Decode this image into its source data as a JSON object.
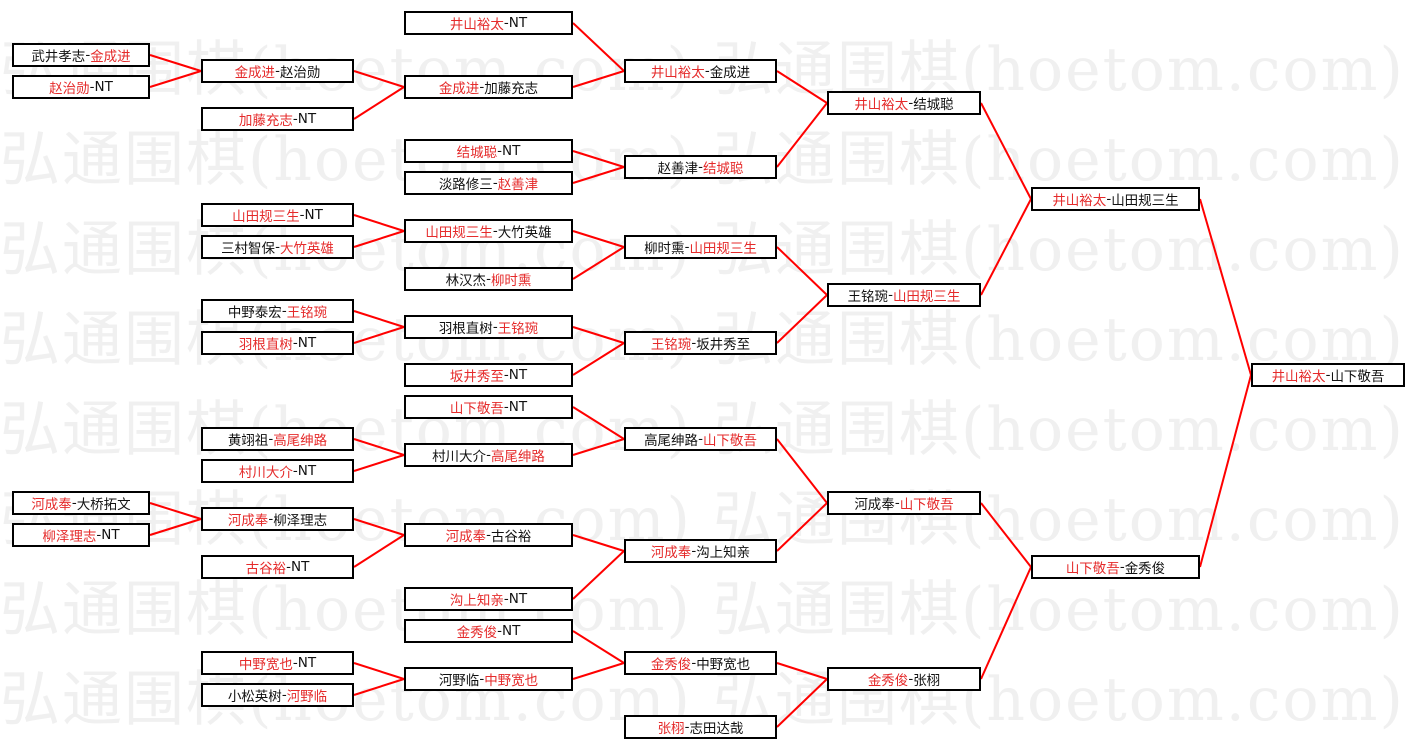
{
  "watermark": "弘通围棋(hoetom.com) 弘通围棋(hoetom.com) 弘通围棋(hoetom.com)",
  "colors": {
    "winner_text": "#e52b2b",
    "connector": "#ff0000",
    "border": "#000000"
  },
  "separator": "-",
  "rounds": [
    [
      {
        "a": "武井孝志",
        "b": "金成进",
        "winner": "b"
      },
      {
        "a": "赵治勋",
        "b": "NT",
        "winner": "a"
      },
      {
        "a": "河成奉",
        "b": "大桥拓文",
        "winner": "a"
      },
      {
        "a": "柳泽理志",
        "b": "NT",
        "winner": "a"
      }
    ],
    [
      {
        "a": "金成进",
        "b": "赵治勋",
        "winner": "a"
      },
      {
        "a": "加藤充志",
        "b": "NT",
        "winner": "a"
      },
      {
        "a": "山田规三生",
        "b": "NT",
        "winner": "a"
      },
      {
        "a": "三村智保",
        "b": "大竹英雄",
        "winner": "b"
      },
      {
        "a": "中野泰宏",
        "b": "王铭琬",
        "winner": "b"
      },
      {
        "a": "羽根直树",
        "b": "NT",
        "winner": "a"
      },
      {
        "a": "黄翊祖",
        "b": "高尾绅路",
        "winner": "b"
      },
      {
        "a": "村川大介",
        "b": "NT",
        "winner": "a"
      },
      {
        "a": "河成奉",
        "b": "柳泽理志",
        "winner": "a"
      },
      {
        "a": "古谷裕",
        "b": "NT",
        "winner": "a"
      },
      {
        "a": "中野宽也",
        "b": "NT",
        "winner": "a"
      },
      {
        "a": "小松英树",
        "b": "河野临",
        "winner": "b"
      }
    ],
    [
      {
        "a": "井山裕太",
        "b": "NT",
        "winner": "a"
      },
      {
        "a": "金成进",
        "b": "加藤充志",
        "winner": "a"
      },
      {
        "a": "结城聪",
        "b": "NT",
        "winner": "a"
      },
      {
        "a": "淡路修三",
        "b": "赵善津",
        "winner": "b"
      },
      {
        "a": "山田规三生",
        "b": "大竹英雄",
        "winner": "a"
      },
      {
        "a": "林汉杰",
        "b": "柳时熏",
        "winner": "b"
      },
      {
        "a": "羽根直树",
        "b": "王铭琬",
        "winner": "b"
      },
      {
        "a": "坂井秀至",
        "b": "NT",
        "winner": "a"
      },
      {
        "a": "山下敬吾",
        "b": "NT",
        "winner": "a"
      },
      {
        "a": "村川大介",
        "b": "高尾绅路",
        "winner": "b"
      },
      {
        "a": "河成奉",
        "b": "古谷裕",
        "winner": "a"
      },
      {
        "a": "沟上知亲",
        "b": "NT",
        "winner": "a"
      },
      {
        "a": "金秀俊",
        "b": "NT",
        "winner": "a"
      },
      {
        "a": "河野临",
        "b": "中野宽也",
        "winner": "b"
      }
    ],
    [
      {
        "a": "井山裕太",
        "b": "金成进",
        "winner": "a"
      },
      {
        "a": "赵善津",
        "b": "结城聪",
        "winner": "b"
      },
      {
        "a": "柳时熏",
        "b": "山田规三生",
        "winner": "b"
      },
      {
        "a": "王铭琬",
        "b": "坂井秀至",
        "winner": "a"
      },
      {
        "a": "高尾绅路",
        "b": "山下敬吾",
        "winner": "b"
      },
      {
        "a": "河成奉",
        "b": "沟上知亲",
        "winner": "a"
      },
      {
        "a": "金秀俊",
        "b": "中野宽也",
        "winner": "a"
      },
      {
        "a": "张栩",
        "b": "志田达哉",
        "winner": "a"
      }
    ],
    [
      {
        "a": "井山裕太",
        "b": "结城聪",
        "winner": "a"
      },
      {
        "a": "王铭琬",
        "b": "山田规三生",
        "winner": "b"
      },
      {
        "a": "河成奉",
        "b": "山下敬吾",
        "winner": "b"
      },
      {
        "a": "金秀俊",
        "b": "张栩",
        "winner": "a"
      }
    ],
    [
      {
        "a": "井山裕太",
        "b": "山田规三生",
        "winner": "a"
      },
      {
        "a": "山下敬吾",
        "b": "金秀俊",
        "winner": "a"
      }
    ],
    [
      {
        "a": "井山裕太",
        "b": "山下敬吾",
        "winner": "a"
      }
    ]
  ]
}
